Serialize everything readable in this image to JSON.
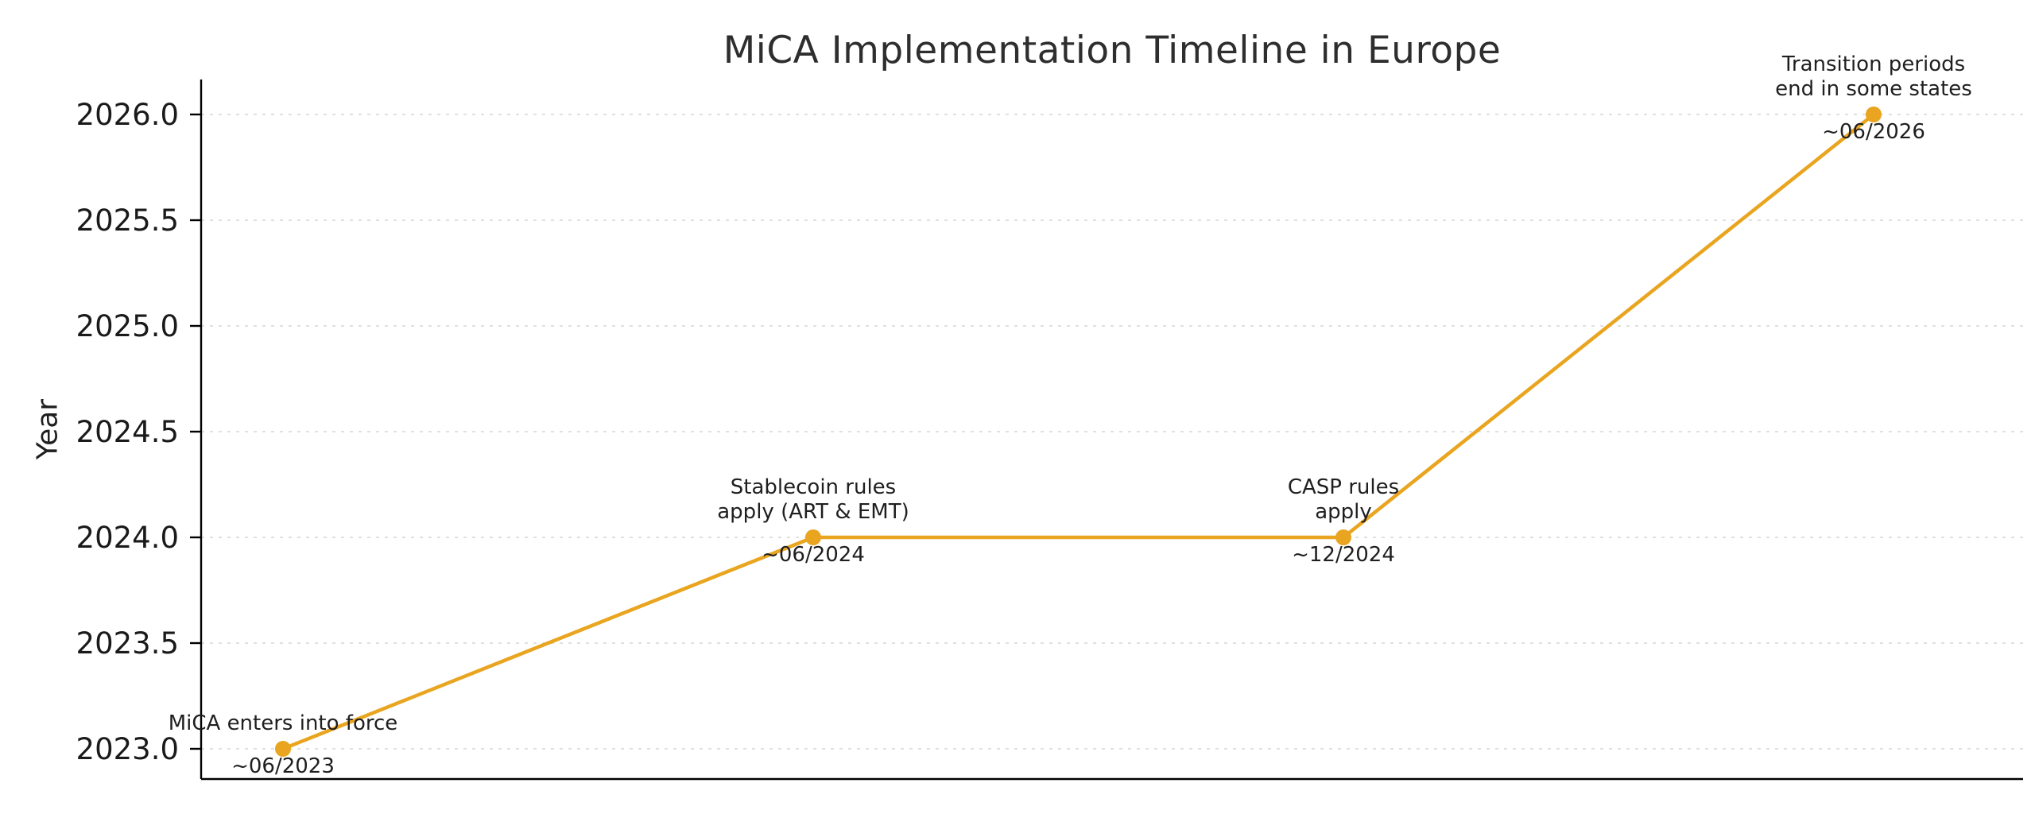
{
  "chart_data": {
    "type": "line",
    "title": "MiCA Implementation Timeline in Europe",
    "xlabel": "",
    "ylabel": "Year",
    "ylim": [
      2023.0,
      2026.0
    ],
    "yticks": [
      2023.0,
      2023.5,
      2024.0,
      2024.5,
      2025.0,
      2025.5,
      2026.0
    ],
    "grid": true,
    "grid_color": "#d6d6d6",
    "line_color": "#E9A51F",
    "text_color": "#1f1f1f",
    "points": [
      {
        "x": 0,
        "year": 2023.0,
        "label": [
          "MiCA enters into force"
        ],
        "date": "~06/2023"
      },
      {
        "x": 1,
        "year": 2024.0,
        "label": [
          "Stablecoin rules",
          "apply (ART & EMT)"
        ],
        "date": "~06/2024"
      },
      {
        "x": 2,
        "year": 2024.0,
        "label": [
          "CASP rules",
          "apply"
        ],
        "date": "~12/2024"
      },
      {
        "x": 3,
        "year": 2026.0,
        "label": [
          "Transition periods",
          "end in some states"
        ],
        "date": "~06/2026"
      }
    ]
  }
}
